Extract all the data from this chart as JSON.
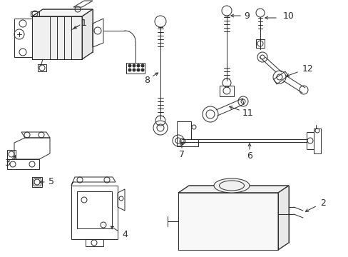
{
  "bg_color": "#ffffff",
  "line_color": "#2a2a2a",
  "lw": 0.7,
  "fig_width": 4.89,
  "fig_height": 3.6,
  "dpi": 100
}
